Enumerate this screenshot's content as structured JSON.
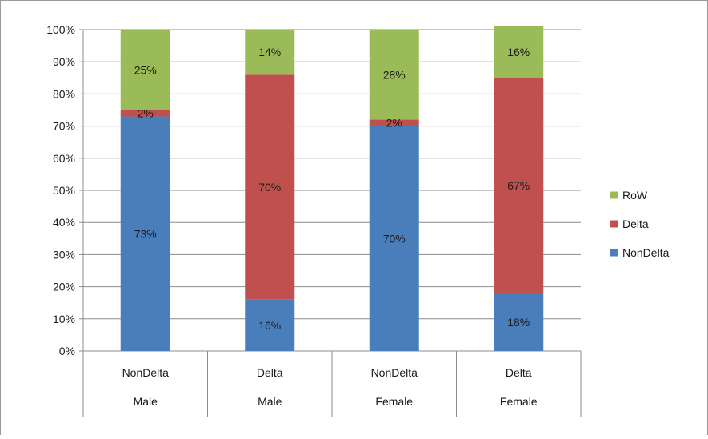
{
  "chart_data": {
    "type": "bar",
    "stacked": true,
    "percent_scale": true,
    "categories": [
      "NonDelta",
      "Delta",
      "NonDelta",
      "Delta"
    ],
    "groups": [
      "Male",
      "Male",
      "Female",
      "Female"
    ],
    "series": [
      {
        "name": "NonDelta",
        "color": "#4a7ebb",
        "values": [
          73,
          16,
          70,
          18
        ]
      },
      {
        "name": "Delta",
        "color": "#c0504d",
        "values": [
          2,
          70,
          2,
          67
        ]
      },
      {
        "name": "RoW",
        "color": "#9bbb59",
        "values": [
          25,
          14,
          28,
          16
        ]
      }
    ],
    "data_labels": [
      [
        "73%",
        "16%",
        "70%",
        "18%"
      ],
      [
        "2%",
        "70%",
        "2%",
        "67%"
      ],
      [
        "25%",
        "14%",
        "28%",
        "16%"
      ]
    ],
    "y_ticks": [
      "0%",
      "10%",
      "20%",
      "30%",
      "40%",
      "50%",
      "60%",
      "70%",
      "80%",
      "90%",
      "100%"
    ],
    "ylim": [
      0,
      100
    ],
    "grid": true,
    "legend_position": "right",
    "legend_order": [
      "RoW",
      "Delta",
      "NonDelta"
    ],
    "title": "",
    "xlabel": "",
    "ylabel": ""
  }
}
